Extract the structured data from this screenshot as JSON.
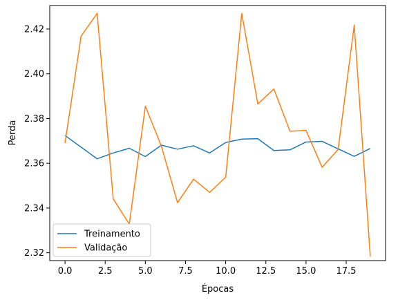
{
  "chart_data": {
    "type": "line",
    "title": "",
    "xlabel": "Épocas",
    "ylabel": "Perda",
    "xlim": [
      -0.95,
      19.95
    ],
    "ylim": [
      2.3165,
      2.4305
    ],
    "x_ticks": [
      0.0,
      2.5,
      5.0,
      7.5,
      10.0,
      12.5,
      15.0,
      17.5
    ],
    "x_tick_labels": [
      "0.0",
      "2.5",
      "5.0",
      "7.5",
      "10.0",
      "12.5",
      "15.0",
      "17.5"
    ],
    "y_ticks": [
      2.32,
      2.34,
      2.36,
      2.38,
      2.4,
      2.42
    ],
    "y_tick_labels": [
      "2.32",
      "2.34",
      "2.36",
      "2.38",
      "2.40",
      "2.42"
    ],
    "grid": false,
    "legend_position": "lower-left",
    "x": [
      0,
      1,
      2,
      3,
      4,
      5,
      6,
      7,
      8,
      9,
      10,
      11,
      12,
      13,
      14,
      15,
      16,
      17,
      18,
      19
    ],
    "series": [
      {
        "name": "Treinamento",
        "color": "#1f77b4",
        "values": [
          2.3724,
          2.3672,
          2.362,
          2.3646,
          2.3667,
          2.363,
          2.3681,
          2.3663,
          2.3678,
          2.3646,
          2.3693,
          2.3708,
          2.371,
          2.3657,
          2.366,
          2.3695,
          2.3698,
          2.3664,
          2.3631,
          2.3666
        ]
      },
      {
        "name": "Validação",
        "color": "#ff7f0e",
        "values": [
          2.369,
          2.4168,
          2.427,
          2.3441,
          2.3328,
          2.3855,
          2.3676,
          2.3424,
          2.3529,
          2.347,
          2.3538,
          2.427,
          2.3865,
          2.3932,
          2.3743,
          2.3747,
          2.3582,
          2.3662,
          2.4218,
          2.3183
        ]
      }
    ]
  }
}
